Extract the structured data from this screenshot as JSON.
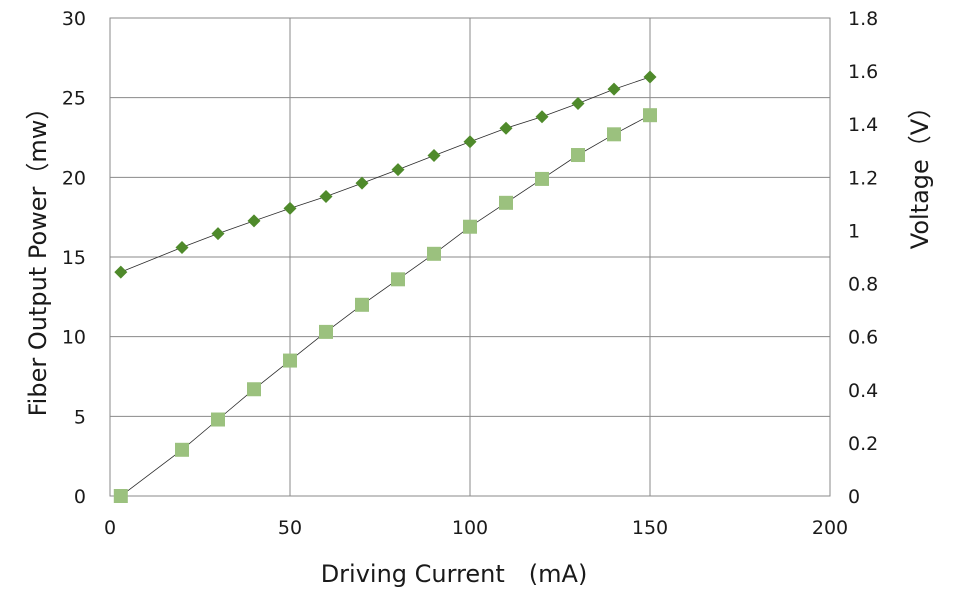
{
  "chart_data": {
    "type": "scatter",
    "xlabel": "Driving Current　(mA)",
    "ylabel": "Fiber Output Power（mw）",
    "y2label": "Voltage（V）",
    "xlim": [
      0,
      200
    ],
    "ylim": [
      0,
      30
    ],
    "y2lim": [
      0,
      1.8
    ],
    "xticks": [
      "0",
      "50",
      "100",
      "150",
      "200"
    ],
    "yticks": [
      "0",
      "5",
      "10",
      "15",
      "20",
      "25",
      "30"
    ],
    "y2ticks": [
      "0",
      "0.2",
      "0.4",
      "0.6",
      "0.8",
      "1",
      "1.2",
      "1.4",
      "1.6",
      "1.8"
    ],
    "grid": true,
    "legend": "none",
    "series": [
      {
        "axis": "y2",
        "marker": "diamond",
        "color": "#4f8a2b",
        "x": [
          3,
          20,
          30,
          40,
          50,
          60,
          70,
          80,
          90,
          100,
          110,
          120,
          130,
          140,
          150
        ],
        "y": [
          0.843,
          0.936,
          0.988,
          1.036,
          1.083,
          1.128,
          1.178,
          1.229,
          1.282,
          1.334,
          1.385,
          1.428,
          1.478,
          1.532,
          1.578
        ]
      },
      {
        "axis": "y",
        "marker": "square",
        "color": "#9bc17e",
        "x": [
          3,
          20,
          30,
          40,
          50,
          60,
          70,
          80,
          90,
          100,
          110,
          120,
          130,
          140,
          150
        ],
        "y": [
          0,
          2.9,
          4.8,
          6.7,
          8.5,
          10.3,
          12.0,
          13.6,
          15.2,
          16.9,
          18.4,
          19.9,
          21.4,
          22.7,
          23.9
        ]
      }
    ]
  }
}
